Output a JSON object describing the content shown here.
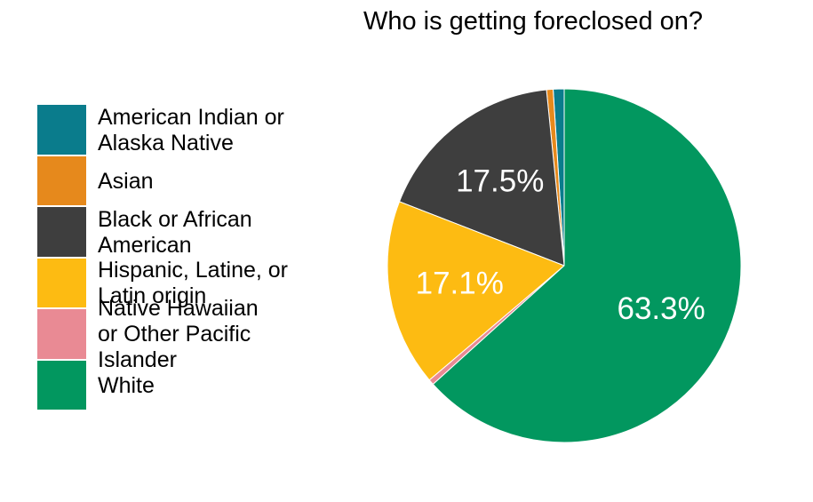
{
  "chart_data": {
    "type": "pie",
    "title": "Who is getting foreclosed on?",
    "legend_position": "left",
    "slices": [
      {
        "label": "American Indian or\nAlaska Native",
        "value": 1.0,
        "color": "#0a7c8c",
        "data_label": ""
      },
      {
        "label": "Asian",
        "value": 0.6,
        "color": "#e6891c",
        "data_label": ""
      },
      {
        "label": "Black or African\nAmerican",
        "value": 17.5,
        "color": "#3e3e3e",
        "data_label": "17.5%"
      },
      {
        "label": "Hispanic, Latine, or\nLatin origin",
        "value": 17.1,
        "color": "#fdbb12",
        "data_label": "17.1%"
      },
      {
        "label": "Native Hawaiian\nor Other Pacific\nIslander",
        "value": 0.5,
        "color": "#e98a94",
        "data_label": ""
      },
      {
        "label": "White",
        "value": 63.3,
        "color": "#02975f",
        "data_label": "63.3%"
      }
    ]
  }
}
